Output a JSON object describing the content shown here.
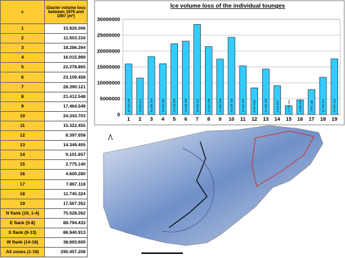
{
  "table": {
    "header": [
      "c",
      "Glacier volume loss between 1976 and 1997 (m³)"
    ],
    "rows": [
      [
        "1",
        "15.926.006"
      ],
      [
        "2",
        "11.503.316"
      ],
      [
        "3",
        "18.286.264"
      ],
      [
        "4",
        "16.015.989"
      ],
      [
        "5",
        "22.278.865"
      ],
      [
        "6",
        "23.109.458"
      ],
      [
        "7",
        "28.390.121"
      ],
      [
        "8",
        "21.412.548"
      ],
      [
        "9",
        "17.464.549"
      ],
      [
        "10",
        "24.343.703"
      ],
      [
        "11",
        "15.322.455"
      ],
      [
        "12",
        "8.397.658"
      ],
      [
        "13",
        "14.349.405"
      ],
      [
        "14",
        "9.101.657"
      ],
      [
        "15",
        "2.775.140"
      ],
      [
        "16",
        "4.600.280"
      ],
      [
        "17",
        "7.867.118"
      ],
      [
        "18",
        "11.745.324"
      ],
      [
        "19",
        "17.567.352"
      ],
      [
        "N flank (19, 1-4)",
        "75.028.262"
      ],
      [
        "E flank (5-8)",
        "89.794.433"
      ],
      [
        "S flank (9-13)",
        "86.940.913"
      ],
      [
        "W flank (14-18)",
        "38.693.600"
      ],
      [
        "All zones (1-19)",
        "290.457.208"
      ]
    ]
  },
  "chart_data": {
    "type": "bar",
    "title": "Ice volume loss of the individual tounges",
    "categories": [
      "1",
      "2",
      "3",
      "4",
      "5",
      "6",
      "7",
      "8",
      "9",
      "10",
      "11",
      "12",
      "13",
      "14",
      "15",
      "16",
      "17",
      "18",
      "19"
    ],
    "values": [
      15926006,
      11503316,
      18286264,
      16015989,
      22278865,
      23109458,
      28390121,
      21412548,
      17464549,
      24343703,
      15322455,
      8397658,
      14349405,
      9101657,
      2775140,
      4600280,
      7867118,
      11745324,
      17567352
    ],
    "value_labels": [
      "15.926.006",
      "11.503.316",
      "18.286.264",
      "16.015.989",
      "22.278.865",
      "23.109.458",
      "28.390.121",
      "21.412.548",
      "17.464.549",
      "24.343.703",
      "15.322.455",
      "8.397.658",
      "14.349.405",
      "9.101.657",
      "2.775.140",
      "4.600.280",
      "7.867.118",
      "11.745.324",
      "17.567.352"
    ],
    "color": "#33ccff",
    "ylim": [
      0,
      30000000
    ],
    "yticks": [
      0,
      5000000,
      10000000,
      15000000,
      20000000,
      25000000,
      30000000
    ],
    "grid": true
  }
}
